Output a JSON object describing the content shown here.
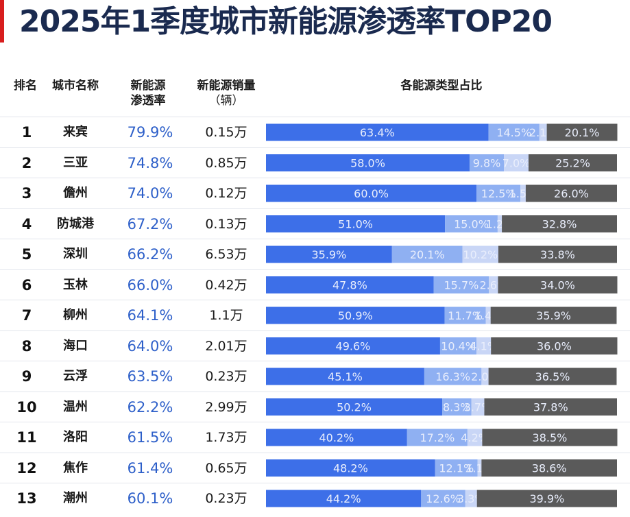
{
  "title": "2025年1季度城市新能源渗透率TOP20",
  "header": {
    "rank": "排名",
    "city": "城市名称",
    "penetration_line1": "新能源",
    "penetration_line2": "渗透率",
    "sales_line1": "新能源销量",
    "sales_line2": "（辆）",
    "share": "各能源类型占比"
  },
  "colors": {
    "accent": "#d81e1e",
    "title": "#1a2a4f",
    "penetration_text": "#2d5fc9",
    "segments": [
      "#3d6fe8",
      "#8fb0f2",
      "#c9d6f6",
      "#5a5a5a"
    ]
  },
  "chart_data": {
    "type": "bar",
    "stacked": true,
    "orientation": "horizontal",
    "title": "各能源类型占比",
    "xlim": [
      0,
      100
    ],
    "categories": [
      "来宾",
      "三亚",
      "儋州",
      "防城港",
      "深圳",
      "玉林",
      "柳州",
      "海口",
      "云浮",
      "温州",
      "洛阳",
      "焦作",
      "潮州"
    ],
    "series": [
      {
        "name": "segment_1",
        "values": [
          63.4,
          58.0,
          60.0,
          51.0,
          35.9,
          47.8,
          50.9,
          49.6,
          45.1,
          50.2,
          40.2,
          48.2,
          44.2
        ]
      },
      {
        "name": "segment_2",
        "values": [
          14.5,
          9.8,
          12.5,
          15.0,
          20.1,
          15.7,
          11.7,
          10.4,
          16.3,
          8.3,
          17.2,
          12.1,
          12.6
        ]
      },
      {
        "name": "segment_3",
        "values": [
          2.1,
          7.0,
          1.5,
          1.2,
          10.2,
          2.6,
          1.4,
          4.1,
          2.0,
          3.7,
          4.2,
          1.1,
          3.3
        ]
      },
      {
        "name": "segment_4",
        "values": [
          20.1,
          25.2,
          26.0,
          32.8,
          33.8,
          34.0,
          35.9,
          36.0,
          36.5,
          37.8,
          38.5,
          38.6,
          39.9
        ]
      }
    ]
  },
  "rows": [
    {
      "rank": "1",
      "city": "来宾",
      "penetration": "79.9%",
      "sales": "0.15万"
    },
    {
      "rank": "2",
      "city": "三亚",
      "penetration": "74.8%",
      "sales": "0.85万"
    },
    {
      "rank": "3",
      "city": "儋州",
      "penetration": "74.0%",
      "sales": "0.12万"
    },
    {
      "rank": "4",
      "city": "防城港",
      "penetration": "67.2%",
      "sales": "0.13万"
    },
    {
      "rank": "5",
      "city": "深圳",
      "penetration": "66.2%",
      "sales": "6.53万"
    },
    {
      "rank": "6",
      "city": "玉林",
      "penetration": "66.0%",
      "sales": "0.42万"
    },
    {
      "rank": "7",
      "city": "柳州",
      "penetration": "64.1%",
      "sales": "1.1万"
    },
    {
      "rank": "8",
      "city": "海口",
      "penetration": "64.0%",
      "sales": "2.01万"
    },
    {
      "rank": "9",
      "city": "云浮",
      "penetration": "63.5%",
      "sales": "0.23万"
    },
    {
      "rank": "10",
      "city": "温州",
      "penetration": "62.2%",
      "sales": "2.99万"
    },
    {
      "rank": "11",
      "city": "洛阳",
      "penetration": "61.5%",
      "sales": "1.73万"
    },
    {
      "rank": "12",
      "city": "焦作",
      "penetration": "61.4%",
      "sales": "0.65万"
    },
    {
      "rank": "13",
      "city": "潮州",
      "penetration": "60.1%",
      "sales": "0.23万"
    }
  ]
}
